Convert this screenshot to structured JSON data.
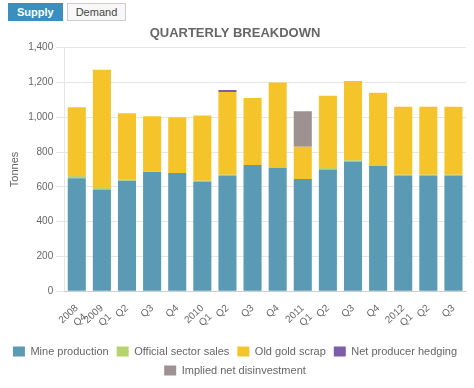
{
  "chart_data": {
    "type": "bar",
    "title": "QUARTERLY BREAKDOWN",
    "annotations": [
      "Supply",
      "Demand"
    ],
    "y_label": "Tonnes",
    "categories": [
      "2008\nQ4",
      "2009\nQ1",
      "Q2",
      "Q3",
      "Q4",
      "2010\nQ1",
      "Q2",
      "Q3",
      "Q4",
      "2011\nQ1",
      "Q2",
      "Q3",
      "Q4",
      "2012\nQ1",
      "Q2",
      "Q3"
    ],
    "series": [
      {
        "name": "Mine production",
        "color": "#5b9ab5",
        "values": [
          650,
          585,
          635,
          685,
          680,
          630,
          665,
          725,
          710,
          645,
          700,
          745,
          720,
          665,
          665,
          665
        ]
      },
      {
        "name": "Official sector sales",
        "color": "#b5d46e",
        "values": [
          12,
          8,
          8,
          5,
          0,
          5,
          5,
          0,
          0,
          0,
          8,
          8,
          5,
          5,
          5,
          5
        ]
      },
      {
        "name": "Old gold scrap",
        "color": "#f5c42a",
        "values": [
          395,
          680,
          380,
          315,
          320,
          375,
          475,
          385,
          490,
          185,
          415,
          455,
          415,
          390,
          390,
          390
        ]
      },
      {
        "name": "Net producer hedging",
        "color": "#7b5ea7",
        "values": [
          0,
          0,
          0,
          0,
          0,
          0,
          12,
          0,
          0,
          0,
          0,
          0,
          0,
          0,
          0,
          0
        ]
      },
      {
        "name": "Implied net disinvestment",
        "color": "#9e9191",
        "values": [
          0,
          0,
          0,
          0,
          0,
          0,
          0,
          0,
          0,
          205,
          0,
          0,
          0,
          0,
          0,
          0
        ]
      }
    ],
    "stacked": true,
    "ylim": [
      0,
      1400
    ],
    "yticks": [
      0,
      200,
      400,
      600,
      800,
      {
        "value": 1000,
        "label": "1,000"
      },
      {
        "value": 1200,
        "label": "1,200"
      },
      {
        "value": 1400,
        "label": "1,400"
      }
    ],
    "grid": true,
    "legend": "bottom"
  }
}
